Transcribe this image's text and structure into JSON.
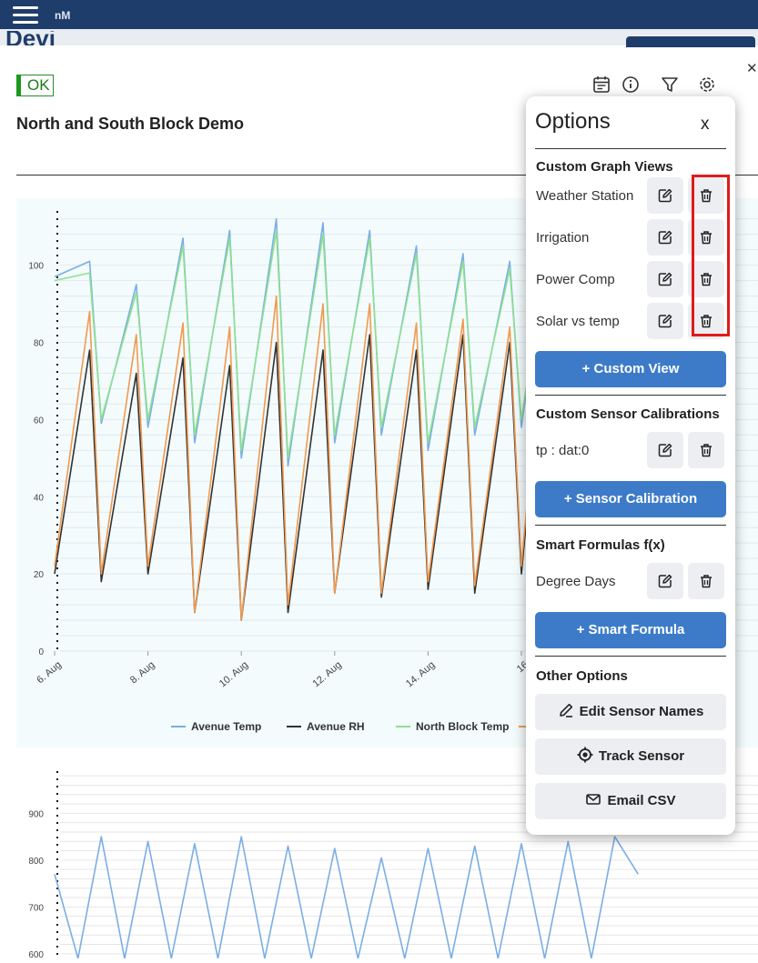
{
  "topbar": {
    "brand": "nM",
    "menu_icon": "hamburger-icon"
  },
  "background": {
    "partial_title": "Devi"
  },
  "status": {
    "ok_label": "OK"
  },
  "page": {
    "title": "North and South Block Demo"
  },
  "toolbar": {
    "icons": [
      "calendar-icon",
      "info-icon",
      "filter-icon",
      "gear-icon"
    ]
  },
  "colors": {
    "avenue_temp": "#7aaee5",
    "avenue_rh": "#333333",
    "north_block_temp": "#8ee08e",
    "fourth_series": "#f09a50",
    "accent": "#3d7bc9",
    "highlight": "#e01b1b"
  },
  "chart_data": [
    {
      "type": "line",
      "title": "",
      "xlabel": "",
      "ylabel": "",
      "x_tick_labels": [
        "6. Aug",
        "8. Aug",
        "10. Aug",
        "12. Aug",
        "14. Aug",
        "16"
      ],
      "y_tick_labels": [
        "0",
        "20",
        "40",
        "60",
        "80",
        "100"
      ],
      "ylim": [
        0,
        115
      ],
      "grid": true,
      "legend_placement": "bottom",
      "series": [
        {
          "name": "Avenue Temp",
          "days": [
            6.0,
            6.75,
            7.0,
            7.75,
            8.0,
            8.75,
            9.0,
            9.75,
            10.0,
            10.75,
            11.0,
            11.75,
            12.0,
            12.75,
            13.0,
            13.75,
            14.0,
            14.75,
            15.0,
            15.75,
            16.0,
            16.5
          ],
          "values": [
            97,
            101,
            59,
            95,
            58,
            107,
            54,
            109,
            50,
            112,
            48,
            111,
            54,
            109,
            56,
            105,
            52,
            103,
            56,
            101,
            58,
            102
          ]
        },
        {
          "name": "Avenue RH",
          "days": [
            6.0,
            6.75,
            7.0,
            7.75,
            8.0,
            8.75,
            9.0,
            9.75,
            10.0,
            10.75,
            11.0,
            11.75,
            12.0,
            12.75,
            13.0,
            13.75,
            14.0,
            14.75,
            15.0,
            15.75,
            16.0,
            16.5
          ],
          "values": [
            20,
            78,
            18,
            72,
            20,
            76,
            10,
            74,
            8,
            80,
            10,
            78,
            15,
            82,
            14,
            78,
            16,
            82,
            15,
            80,
            20,
            84
          ]
        },
        {
          "name": "North Block Temp",
          "days": [
            6.0,
            6.75,
            7.0,
            7.75,
            8.0,
            8.75,
            9.0,
            9.75,
            10.0,
            10.75,
            11.0,
            11.75,
            12.0,
            12.75,
            13.0,
            13.75,
            14.0,
            14.75,
            15.0,
            15.75,
            16.0,
            16.5
          ],
          "values": [
            96,
            98,
            60,
            93,
            60,
            105,
            56,
            107,
            52,
            109,
            50,
            108,
            56,
            107,
            58,
            103,
            54,
            101,
            58,
            99,
            60,
            100
          ]
        },
        {
          "name": "",
          "days": [
            6.0,
            6.75,
            7.0,
            7.75,
            8.0,
            8.75,
            9.0,
            9.75,
            10.0,
            10.75,
            11.0,
            11.75,
            12.0,
            12.75,
            13.0,
            13.75,
            14.0,
            14.75,
            15.0,
            15.75,
            16.0,
            16.5
          ],
          "values": [
            22,
            88,
            20,
            82,
            22,
            85,
            10,
            84,
            8,
            92,
            12,
            90,
            15,
            90,
            15,
            85,
            18,
            86,
            17,
            84,
            22,
            88
          ]
        }
      ]
    },
    {
      "type": "line",
      "title": "",
      "y_tick_labels": [
        "600",
        "700",
        "800",
        "900"
      ],
      "ylim": [
        590,
        990
      ],
      "grid": true,
      "series": [
        {
          "name": "",
          "days": [
            6.0,
            6.5,
            7.0,
            7.5,
            8.0,
            8.5,
            9.0,
            9.5,
            10.0,
            10.5,
            11.0,
            11.5,
            12.0,
            12.5,
            13.0,
            13.5,
            14.0,
            14.5,
            15.0,
            15.5,
            16.0,
            16.5,
            17.0,
            17.5,
            18.0,
            18.5
          ],
          "values": [
            770,
            590,
            850,
            590,
            840,
            590,
            835,
            590,
            850,
            590,
            830,
            590,
            825,
            590,
            805,
            590,
            825,
            590,
            830,
            590,
            835,
            590,
            840,
            590,
            850,
            770
          ]
        }
      ]
    }
  ],
  "options": {
    "title": "Options",
    "close_label": "x",
    "sections": {
      "custom_graph_views": {
        "title": "Custom Graph Views",
        "items": [
          "Weather Station",
          "Irrigation",
          "Power Comp",
          "Solar vs temp"
        ],
        "add_label": "+ Custom View"
      },
      "custom_sensor_calibrations": {
        "title": "Custom Sensor Calibrations",
        "items": [
          "tp : dat:0"
        ],
        "add_label": "+ Sensor Calibration"
      },
      "smart_formulas": {
        "title": "Smart Formulas f(x)",
        "items": [
          "Degree Days"
        ],
        "add_label": "+ Smart Formula"
      },
      "other_options": {
        "title": "Other Options",
        "edit_names_label": "Edit Sensor Names",
        "track_sensor_label": "Track Sensor",
        "email_csv_label": "Email CSV"
      }
    },
    "icons": {
      "edit": "pencil-icon",
      "delete": "trash-icon"
    }
  }
}
